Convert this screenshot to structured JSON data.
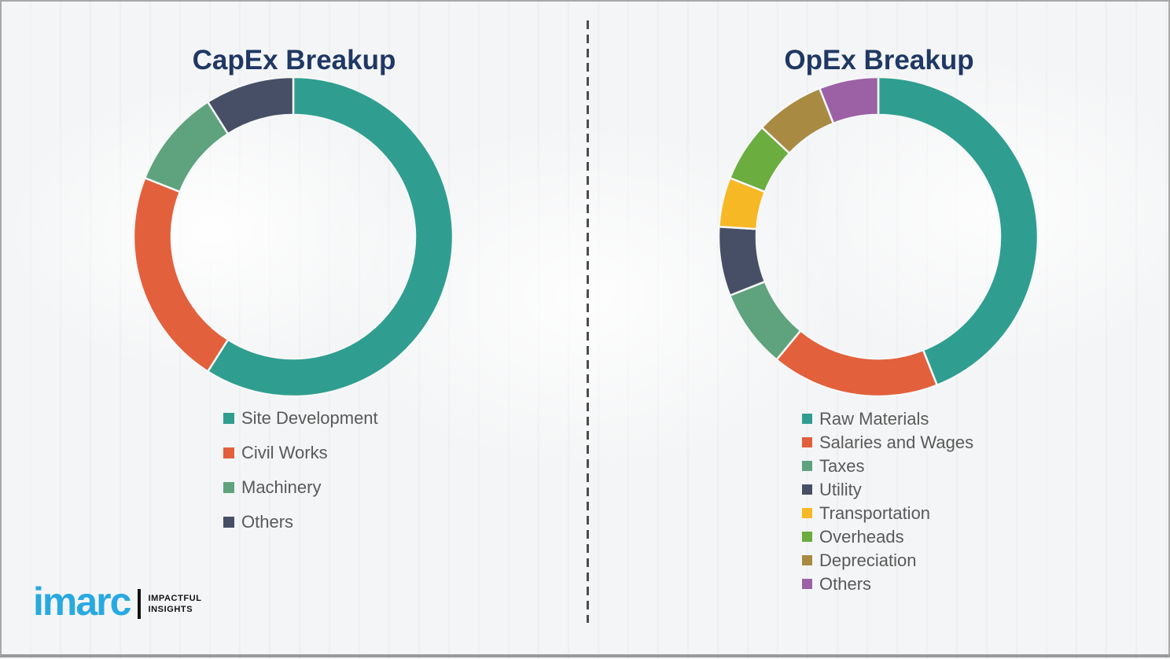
{
  "page": {
    "background_color": "#f4f5f6",
    "border_color": "#a8a8a8",
    "divider_style": "vertical-dashed",
    "title_color": "#1F3864",
    "legend_text_color": "#595959"
  },
  "chart_data": [
    {
      "type": "pie",
      "variant": "donut",
      "title": "CapEx Breakup",
      "start_angle_deg": 0,
      "direction": "clockwise",
      "legend_position": "below-chart-left",
      "units": "percent",
      "segments": [
        {
          "label": "Site Development",
          "value": 59,
          "color": "#2F9E90"
        },
        {
          "label": "Civil Works",
          "value": 22,
          "color": "#E2603C"
        },
        {
          "label": "Machinery",
          "value": 10,
          "color": "#5EA37E"
        },
        {
          "label": "Others",
          "value": 9,
          "color": "#474F66"
        }
      ]
    },
    {
      "type": "pie",
      "variant": "donut",
      "title": "OpEx Breakup",
      "start_angle_deg": 0,
      "direction": "clockwise",
      "legend_position": "below-chart-left",
      "units": "percent",
      "segments": [
        {
          "label": "Raw Materials",
          "value": 44,
          "color": "#2F9E90"
        },
        {
          "label": "Salaries and Wages",
          "value": 17,
          "color": "#E2603C"
        },
        {
          "label": "Taxes",
          "value": 8,
          "color": "#5EA37E"
        },
        {
          "label": "Utility",
          "value": 7,
          "color": "#474F66"
        },
        {
          "label": "Transportation",
          "value": 5,
          "color": "#F7B825"
        },
        {
          "label": "Overheads",
          "value": 6,
          "color": "#6BAD3F"
        },
        {
          "label": "Depreciation",
          "value": 7,
          "color": "#A98A42"
        },
        {
          "label": "Others",
          "value": 6,
          "color": "#9C61A5"
        }
      ]
    }
  ],
  "branding": {
    "logo_text": "imarc",
    "logo_color": "#29A9E1",
    "tagline_line1": "IMPACTFUL",
    "tagline_line2": "INSIGHTS"
  }
}
